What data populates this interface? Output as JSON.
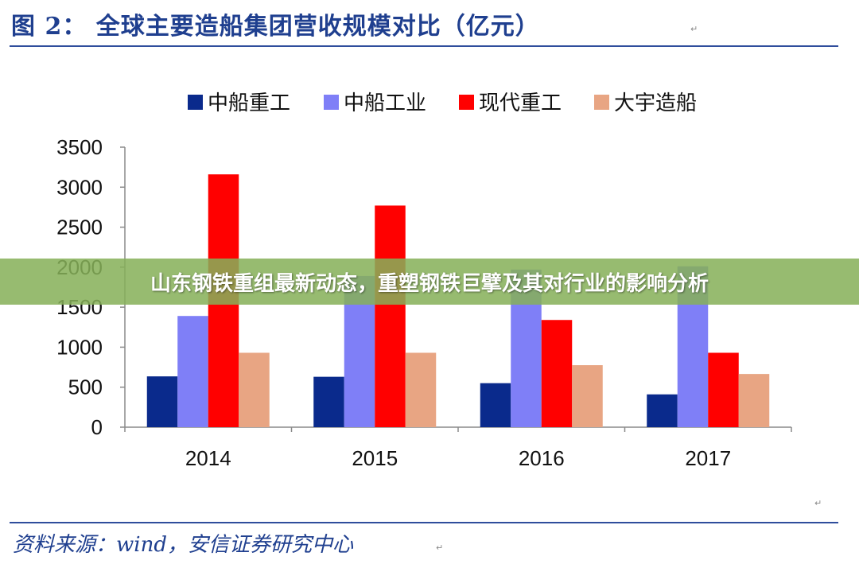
{
  "figure": {
    "title": "图 2：  全球主要造船集团营收规模对比（亿元）",
    "source": "资料来源：wind，安信证券研究中心"
  },
  "banner": {
    "text": "山东钢铁重组最新动态，重塑钢铁巨擘及其对行业的影响分析"
  },
  "chart_data": {
    "type": "bar",
    "categories": [
      "2014",
      "2015",
      "2016",
      "2017"
    ],
    "series": [
      {
        "name": "中船重工",
        "color": "#0a2a8c",
        "values": [
          635,
          630,
          550,
          410
        ]
      },
      {
        "name": "中船工业",
        "color": "#7f7ff7",
        "values": [
          1390,
          1890,
          1970,
          2010
        ]
      },
      {
        "name": "现代重工",
        "color": "#ff0000",
        "values": [
          3160,
          2770,
          1340,
          930
        ]
      },
      {
        "name": "大宇造船",
        "color": "#e8a583",
        "values": [
          930,
          930,
          775,
          665
        ]
      }
    ],
    "ylim": [
      0,
      3500
    ],
    "yticks": [
      0,
      500,
      1000,
      1500,
      2000,
      2500,
      3000,
      3500
    ],
    "legend_position": "top",
    "grid": false
  }
}
